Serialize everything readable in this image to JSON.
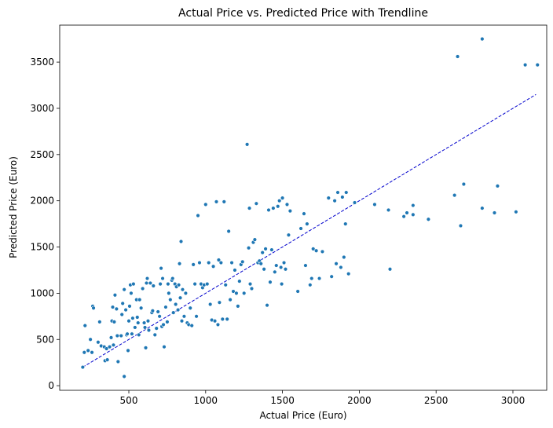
{
  "chart_data": {
    "type": "scatter",
    "title": "Actual Price vs. Predicted Price with Trendline",
    "xlabel": "Actual Price (Euro)",
    "ylabel": "Predicted Price (Euro)",
    "xlim": [
      50,
      3220
    ],
    "ylim": [
      -50,
      3900
    ],
    "xticks": [
      500,
      1000,
      1500,
      2000,
      2500,
      3000
    ],
    "yticks": [
      0,
      500,
      1000,
      1500,
      2000,
      2500,
      3000,
      3500
    ],
    "grid": false,
    "colors": {
      "points": "#1f77b4",
      "trendline": "#0000cd"
    },
    "trendline": {
      "style": "dashed",
      "x": [
        200,
        3150
      ],
      "y": [
        200,
        3150
      ]
    },
    "points": [
      [
        200,
        200
      ],
      [
        210,
        360
      ],
      [
        215,
        650
      ],
      [
        235,
        380
      ],
      [
        250,
        500
      ],
      [
        260,
        360
      ],
      [
        265,
        860
      ],
      [
        270,
        840
      ],
      [
        300,
        470
      ],
      [
        310,
        690
      ],
      [
        320,
        430
      ],
      [
        340,
        420
      ],
      [
        345,
        270
      ],
      [
        355,
        400
      ],
      [
        360,
        280
      ],
      [
        375,
        420
      ],
      [
        385,
        520
      ],
      [
        390,
        700
      ],
      [
        395,
        850
      ],
      [
        400,
        440
      ],
      [
        405,
        690
      ],
      [
        410,
        980
      ],
      [
        420,
        830
      ],
      [
        425,
        540
      ],
      [
        430,
        260
      ],
      [
        450,
        540
      ],
      [
        455,
        770
      ],
      [
        460,
        890
      ],
      [
        470,
        100
      ],
      [
        470,
        1040
      ],
      [
        480,
        820
      ],
      [
        485,
        550
      ],
      [
        490,
        560
      ],
      [
        495,
        380
      ],
      [
        500,
        700
      ],
      [
        505,
        860
      ],
      [
        510,
        1090
      ],
      [
        515,
        1000
      ],
      [
        520,
        560
      ],
      [
        525,
        730
      ],
      [
        530,
        1100
      ],
      [
        540,
        630
      ],
      [
        550,
        930
      ],
      [
        555,
        740
      ],
      [
        560,
        680
      ],
      [
        565,
        550
      ],
      [
        570,
        930
      ],
      [
        580,
        840
      ],
      [
        590,
        1050
      ],
      [
        600,
        680
      ],
      [
        605,
        630
      ],
      [
        610,
        410
      ],
      [
        615,
        1110
      ],
      [
        620,
        1160
      ],
      [
        625,
        700
      ],
      [
        630,
        600
      ],
      [
        640,
        1110
      ],
      [
        650,
        790
      ],
      [
        655,
        810
      ],
      [
        660,
        1080
      ],
      [
        670,
        550
      ],
      [
        680,
        620
      ],
      [
        690,
        800
      ],
      [
        700,
        750
      ],
      [
        705,
        1100
      ],
      [
        710,
        1270
      ],
      [
        715,
        640
      ],
      [
        720,
        1160
      ],
      [
        725,
        660
      ],
      [
        730,
        420
      ],
      [
        740,
        850
      ],
      [
        750,
        690
      ],
      [
        755,
        1100
      ],
      [
        760,
        1000
      ],
      [
        770,
        930
      ],
      [
        780,
        1140
      ],
      [
        785,
        1160
      ],
      [
        790,
        790
      ],
      [
        800,
        1100
      ],
      [
        805,
        880
      ],
      [
        810,
        1070
      ],
      [
        820,
        820
      ],
      [
        825,
        1090
      ],
      [
        830,
        1320
      ],
      [
        835,
        950
      ],
      [
        840,
        1560
      ],
      [
        845,
        700
      ],
      [
        850,
        1040
      ],
      [
        860,
        750
      ],
      [
        870,
        1000
      ],
      [
        880,
        680
      ],
      [
        890,
        660
      ],
      [
        900,
        840
      ],
      [
        910,
        650
      ],
      [
        920,
        1310
      ],
      [
        930,
        1100
      ],
      [
        940,
        750
      ],
      [
        950,
        1840
      ],
      [
        960,
        1330
      ],
      [
        970,
        1100
      ],
      [
        980,
        1060
      ],
      [
        990,
        1090
      ],
      [
        1000,
        1960
      ],
      [
        1010,
        1100
      ],
      [
        1020,
        1330
      ],
      [
        1030,
        880
      ],
      [
        1040,
        710
      ],
      [
        1050,
        1290
      ],
      [
        1060,
        700
      ],
      [
        1070,
        1990
      ],
      [
        1080,
        660
      ],
      [
        1085,
        1360
      ],
      [
        1090,
        900
      ],
      [
        1100,
        1330
      ],
      [
        1110,
        720
      ],
      [
        1120,
        1990
      ],
      [
        1130,
        1090
      ],
      [
        1140,
        720
      ],
      [
        1150,
        1670
      ],
      [
        1160,
        930
      ],
      [
        1170,
        1330
      ],
      [
        1180,
        1020
      ],
      [
        1190,
        1250
      ],
      [
        1200,
        1000
      ],
      [
        1210,
        860
      ],
      [
        1220,
        1130
      ],
      [
        1230,
        1310
      ],
      [
        1240,
        1340
      ],
      [
        1250,
        1000
      ],
      [
        1270,
        2610
      ],
      [
        1280,
        1490
      ],
      [
        1285,
        1920
      ],
      [
        1290,
        1100
      ],
      [
        1300,
        1050
      ],
      [
        1310,
        1550
      ],
      [
        1320,
        1580
      ],
      [
        1330,
        1970
      ],
      [
        1340,
        1330
      ],
      [
        1350,
        1350
      ],
      [
        1360,
        1320
      ],
      [
        1370,
        1440
      ],
      [
        1380,
        1260
      ],
      [
        1390,
        1480
      ],
      [
        1400,
        870
      ],
      [
        1410,
        1900
      ],
      [
        1420,
        1120
      ],
      [
        1430,
        1470
      ],
      [
        1440,
        1920
      ],
      [
        1450,
        1230
      ],
      [
        1460,
        1300
      ],
      [
        1470,
        1940
      ],
      [
        1480,
        2000
      ],
      [
        1490,
        1280
      ],
      [
        1495,
        1100
      ],
      [
        1500,
        2030
      ],
      [
        1510,
        1330
      ],
      [
        1520,
        1260
      ],
      [
        1530,
        1960
      ],
      [
        1540,
        1630
      ],
      [
        1550,
        1890
      ],
      [
        1600,
        1020
      ],
      [
        1620,
        1700
      ],
      [
        1640,
        1860
      ],
      [
        1650,
        1300
      ],
      [
        1660,
        1750
      ],
      [
        1680,
        1090
      ],
      [
        1690,
        1160
      ],
      [
        1700,
        1480
      ],
      [
        1720,
        1460
      ],
      [
        1740,
        1160
      ],
      [
        1760,
        1450
      ],
      [
        1800,
        2030
      ],
      [
        1820,
        1180
      ],
      [
        1840,
        2000
      ],
      [
        1850,
        1320
      ],
      [
        1860,
        2090
      ],
      [
        1880,
        1280
      ],
      [
        1890,
        2040
      ],
      [
        1900,
        1390
      ],
      [
        1910,
        1750
      ],
      [
        1915,
        2090
      ],
      [
        1930,
        1210
      ],
      [
        1970,
        1980
      ],
      [
        2100,
        1960
      ],
      [
        2190,
        1900
      ],
      [
        2200,
        1260
      ],
      [
        2290,
        1830
      ],
      [
        2310,
        1870
      ],
      [
        2350,
        1950
      ],
      [
        2350,
        1850
      ],
      [
        2450,
        1800
      ],
      [
        2620,
        2060
      ],
      [
        2640,
        3560
      ],
      [
        2660,
        1730
      ],
      [
        2680,
        2180
      ],
      [
        2800,
        3750
      ],
      [
        2800,
        1920
      ],
      [
        2880,
        1870
      ],
      [
        2900,
        2160
      ],
      [
        3020,
        1880
      ],
      [
        3080,
        3470
      ],
      [
        3160,
        3470
      ]
    ]
  }
}
